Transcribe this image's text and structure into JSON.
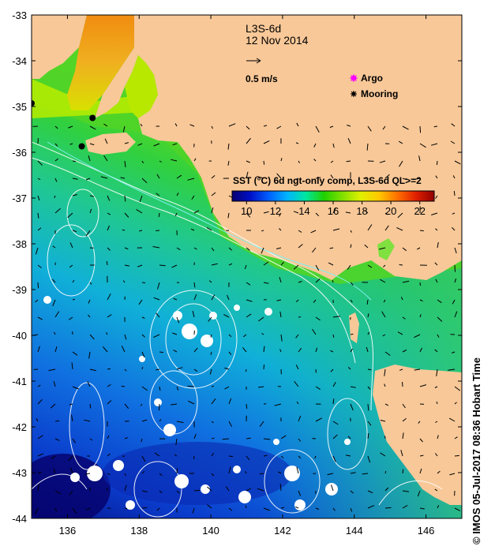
{
  "map": {
    "product": "L3S-6d",
    "date": "12 Nov 2014",
    "vector_scale_label": "0.5 m/s",
    "legend": {
      "argo": "Argo",
      "mooring": "Mooring"
    },
    "colorbar": {
      "title": "SST (°C) 6d ngt-only comp, L3S-6d QL>=2",
      "ticks": [
        "10",
        "12",
        "14",
        "16",
        "18",
        "20",
        "22"
      ],
      "range": [
        9,
        23
      ],
      "colors": [
        "#08006e",
        "#0010c8",
        "#0060ff",
        "#00b4ff",
        "#00e6a0",
        "#20d000",
        "#80e000",
        "#e0f000",
        "#ffc800",
        "#ff7000",
        "#e02000",
        "#900000"
      ]
    },
    "lat_ticks": [
      "-33",
      "-34",
      "-35",
      "-36",
      "-37",
      "-38",
      "-39",
      "-40",
      "-41",
      "-42",
      "-43",
      "-44"
    ],
    "lon_ticks": [
      "136",
      "138",
      "140",
      "142",
      "144",
      "146"
    ],
    "extent": {
      "lon": [
        135,
        147
      ],
      "lat": [
        -44,
        -33
      ]
    },
    "moorings": [
      {
        "lon": 135.0,
        "lat": -34.93
      },
      {
        "lon": 136.7,
        "lat": -35.25
      },
      {
        "lon": 136.4,
        "lat": -35.87
      }
    ],
    "colors": {
      "land": "#f8c898",
      "argo": "#ff00ff",
      "mooring": "#000000",
      "contour": "#ffffff"
    },
    "credit": "© IMOS 05-Jul-2017 08:36 Hobart Time"
  }
}
